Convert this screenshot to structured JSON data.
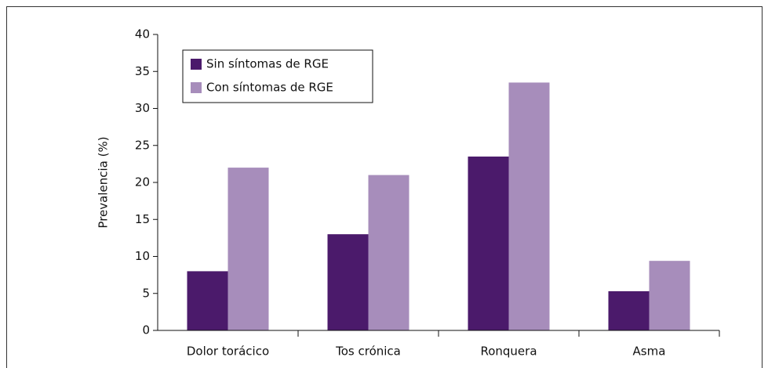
{
  "chart_data": {
    "type": "bar",
    "categories": [
      "Dolor torácico",
      "Tos crónica",
      "Ronquera",
      "Asma"
    ],
    "series": [
      {
        "name": "Sin síntomas de RGE",
        "color": "#4b1a6b",
        "values": [
          8,
          13,
          23.5,
          5.3
        ]
      },
      {
        "name": "Con síntomas de RGE",
        "color": "#a78dbb",
        "values": [
          22,
          21,
          33.5,
          9.4
        ]
      }
    ],
    "y_label": "Prevalencia (%)",
    "ylim": [
      0,
      40
    ],
    "yticks": [
      0,
      5,
      10,
      15,
      20,
      25,
      30,
      35,
      40
    ],
    "legend": "upper-left",
    "grid": false
  }
}
